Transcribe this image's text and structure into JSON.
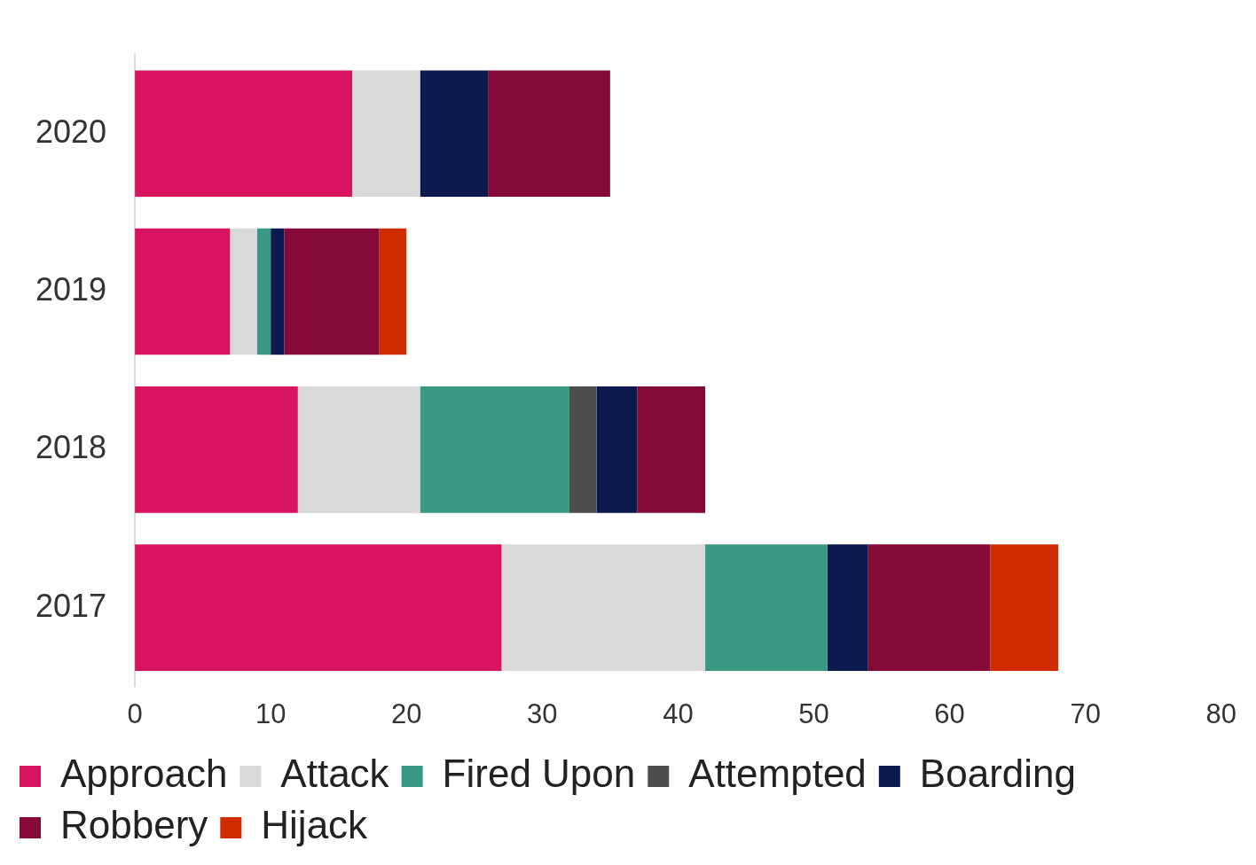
{
  "chart_data": {
    "type": "bar",
    "orientation": "horizontal",
    "stacked": true,
    "categories": [
      "2020",
      "2019",
      "2018",
      "2017"
    ],
    "series": [
      {
        "name": "Approach",
        "color": "#d81460",
        "values": [
          16,
          7,
          12,
          27
        ]
      },
      {
        "name": "Attack",
        "color": "#d9d9d9",
        "values": [
          5,
          2,
          9,
          15
        ]
      },
      {
        "name": "Fired Upon",
        "color": "#3a9982",
        "values": [
          0,
          1,
          11,
          9
        ]
      },
      {
        "name": "Attempted",
        "color": "#4d4d4d",
        "values": [
          0,
          0,
          2,
          0
        ]
      },
      {
        "name": "Boarding",
        "color": "#0c1a4f",
        "values": [
          5,
          1,
          3,
          3
        ]
      },
      {
        "name": "Robbery",
        "color": "#850a3a",
        "values": [
          9,
          7,
          5,
          9
        ]
      },
      {
        "name": "Hijack",
        "color": "#d02c00",
        "values": [
          0,
          2,
          0,
          5
        ]
      }
    ],
    "xlim": [
      0,
      80
    ],
    "xticks": [
      0,
      10,
      20,
      30,
      40,
      50,
      60,
      70,
      80
    ],
    "grid": false,
    "legend": "bottom"
  }
}
